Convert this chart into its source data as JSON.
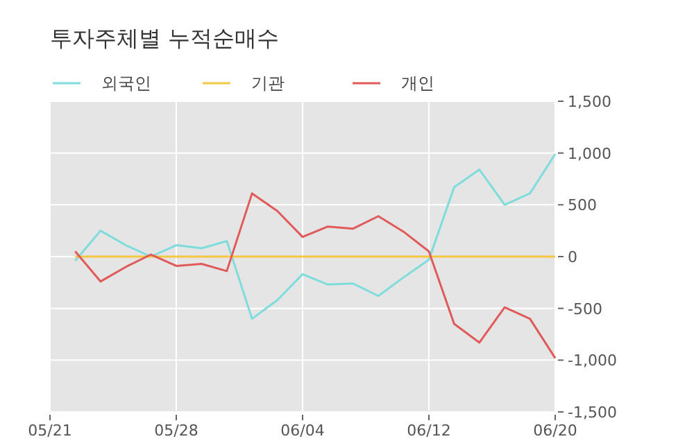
{
  "chart_data": {
    "type": "line",
    "title": "투자주체별 누적순매수",
    "categories": [
      "05/21",
      null,
      null,
      null,
      null,
      "05/28",
      null,
      null,
      null,
      null,
      "06/04",
      null,
      null,
      null,
      null,
      "06/12",
      null,
      null,
      null,
      null,
      "06/20"
    ],
    "series": [
      {
        "name": "외국인",
        "color": "#7fdcdc",
        "values": [
          null,
          -40,
          250,
          110,
          0,
          110,
          80,
          150,
          -600,
          -420,
          -170,
          -270,
          -260,
          -380,
          -200,
          -30,
          670,
          840,
          500,
          610,
          990
        ]
      },
      {
        "name": "기관",
        "color": "#f5c842",
        "values": [
          null,
          0,
          0,
          0,
          0,
          0,
          0,
          0,
          0,
          0,
          0,
          0,
          0,
          0,
          0,
          0,
          0,
          0,
          0,
          0,
          0
        ]
      },
      {
        "name": "개인",
        "color": "#e05a5a",
        "values": [
          null,
          50,
          -240,
          -100,
          20,
          -90,
          -70,
          -140,
          610,
          440,
          190,
          290,
          270,
          390,
          240,
          50,
          -650,
          -830,
          -490,
          -600,
          -980
        ]
      }
    ],
    "ylim": [
      -1500,
      1500
    ],
    "yticks": [
      {
        "value": -1500,
        "label": "-1,500"
      },
      {
        "value": -1000,
        "label": "-1,000"
      },
      -500,
      0,
      500,
      {
        "value": 1000,
        "label": "1,000"
      },
      {
        "value": 1500,
        "label": "1,500"
      }
    ],
    "grid": true,
    "legend": "top left"
  }
}
